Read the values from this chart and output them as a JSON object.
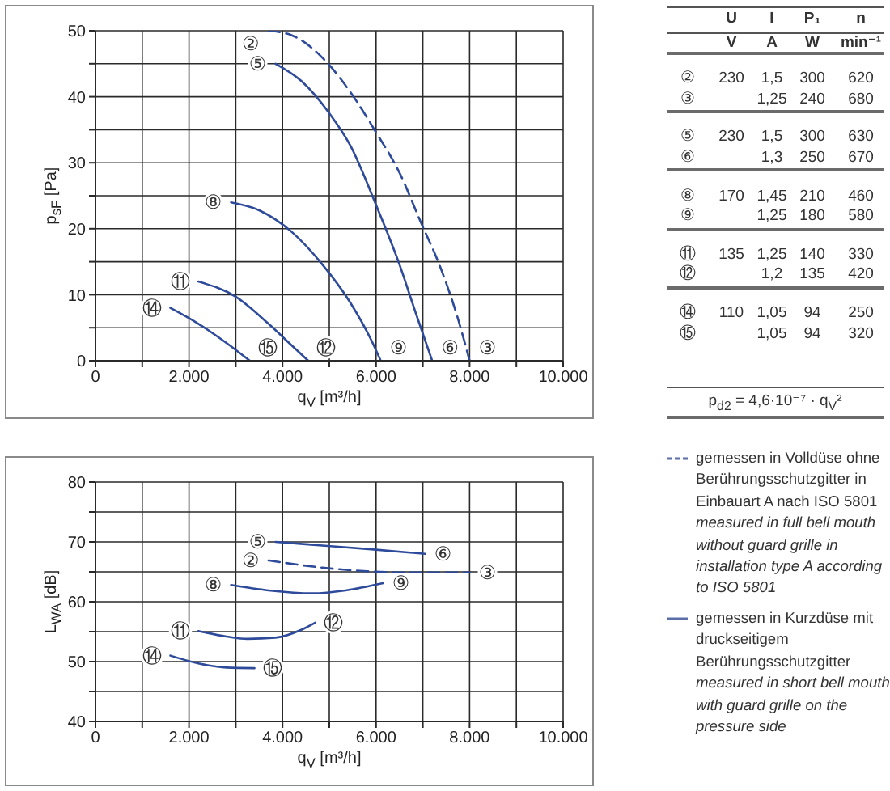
{
  "chart_data": [
    {
      "type": "line",
      "xlabel": "q$_{V}$ [m³/h]",
      "ylabel": "p$_{sF}$ [Pa]",
      "xlim": [
        0,
        10000
      ],
      "ylim": [
        0,
        50
      ],
      "xticks": [
        0,
        {
          "value": 1000,
          "label": null
        },
        {
          "value": 2000,
          "label": "2.000"
        },
        {
          "value": 3000,
          "label": null
        },
        {
          "value": 4000,
          "label": "4.000"
        },
        {
          "value": 5000,
          "label": null
        },
        {
          "value": 6000,
          "label": "6.000"
        },
        {
          "value": 7000,
          "label": null
        },
        {
          "value": 8000,
          "label": "8.000"
        },
        {
          "value": 9000,
          "label": null
        },
        {
          "value": 10000,
          "label": "10.000"
        }
      ],
      "yticks": [
        0,
        {
          "value": 5,
          "label": null
        },
        10,
        {
          "value": 15,
          "label": null
        },
        20,
        {
          "value": 25,
          "label": null
        },
        30,
        {
          "value": 35,
          "label": null
        },
        40,
        {
          "value": 45,
          "label": null
        },
        50
      ],
      "grid": true,
      "line_style": "solid",
      "series": [
        {
          "color": "#2e4a9a",
          "line_style": "dashed",
          "x": [
            3700,
            4200,
            5000,
            5450,
            6000,
            6500,
            6950,
            7400,
            7750,
            8000
          ],
          "values": [
            50,
            49.3,
            44.8,
            40.7,
            34.6,
            28.5,
            21.1,
            13.7,
            6.4,
            0
          ]
        },
        {
          "color": "#2e4a9a",
          "x": [
            3850,
            4400,
            5000,
            5450,
            6000,
            6500,
            6850,
            7200
          ],
          "values": [
            45,
            42.4,
            37.5,
            32.6,
            23.6,
            14.6,
            7.2,
            0
          ]
        },
        {
          "color": "#2e4a9a",
          "x": [
            2900,
            3500,
            4200,
            4850,
            5450,
            5900,
            6100
          ],
          "values": [
            24,
            22.8,
            19.5,
            14.6,
            8.8,
            3.1,
            0
          ]
        },
        {
          "color": "#2e4a9a",
          "x": [
            2200,
            3000,
            3700,
            4200,
            4550
          ],
          "values": [
            12,
            9.7,
            5.6,
            2.3,
            0
          ]
        },
        {
          "color": "#2e4a9a",
          "x": [
            1600,
            2200,
            2800,
            3300
          ],
          "values": [
            8,
            5.6,
            2.7,
            0
          ]
        }
      ],
      "annotations": [
        {
          "text": "②",
          "x": 3700,
          "y": 50
        },
        {
          "text": "③",
          "x": 8000,
          "y": 0
        },
        {
          "text": "⑤",
          "x": 3850,
          "y": 45
        },
        {
          "text": "⑥",
          "x": 7200,
          "y": 0
        },
        {
          "text": "⑧",
          "x": 2900,
          "y": 24
        },
        {
          "text": "⑨",
          "x": 6100,
          "y": 0
        },
        {
          "text": "⑪",
          "x": 2200,
          "y": 12
        },
        {
          "text": "⑫",
          "x": 4550,
          "y": 0
        },
        {
          "text": "⑭",
          "x": 1600,
          "y": 8
        },
        {
          "text": "⑮",
          "x": 3300,
          "y": 0
        }
      ]
    },
    {
      "type": "line",
      "xlabel": "q$_{V}$ [m³/h]",
      "ylabel": "L$_{WA}$ [dB]",
      "xlim": [
        0,
        10000
      ],
      "ylim": [
        40,
        80
      ],
      "xticks": [
        0,
        {
          "value": 1000,
          "label": null
        },
        {
          "value": 2000,
          "label": "2.000"
        },
        {
          "value": 3000,
          "label": null
        },
        {
          "value": 4000,
          "label": "4.000"
        },
        {
          "value": 5000,
          "label": null
        },
        {
          "value": 6000,
          "label": "6.000"
        },
        {
          "value": 7000,
          "label": null
        },
        {
          "value": 8000,
          "label": "8.000"
        },
        {
          "value": 9000,
          "label": null
        },
        {
          "value": 10000,
          "label": "10.000"
        }
      ],
      "yticks": [
        40,
        {
          "value": 45,
          "label": null
        },
        50,
        {
          "value": 55,
          "label": null
        },
        60,
        {
          "value": 65,
          "label": null
        },
        70,
        {
          "value": 75,
          "label": null
        },
        80
      ],
      "grid": true,
      "line_style": "solid",
      "series": [
        {
          "color": "#2e4a9a",
          "line_style": "dashed",
          "x": [
            3700,
            4850,
            5800,
            6600,
            8000
          ],
          "values": [
            66.9,
            65.7,
            65.1,
            64.9,
            64.9
          ]
        },
        {
          "color": "#2e4a9a",
          "x": [
            3850,
            4850,
            6000,
            7050
          ],
          "values": [
            70,
            69.4,
            68.7,
            68
          ]
        },
        {
          "color": "#2e4a9a",
          "x": [
            2900,
            3700,
            4650,
            5350,
            6150
          ],
          "values": [
            62.8,
            61.9,
            61.4,
            61.9,
            63.1
          ]
        },
        {
          "color": "#2e4a9a",
          "x": [
            2200,
            2800,
            3250,
            3850,
            4400,
            4700
          ],
          "values": [
            55.1,
            54.2,
            53.8,
            54,
            55.3,
            56.5
          ]
        },
        {
          "color": "#2e4a9a",
          "x": [
            1600,
            2200,
            2800,
            3400
          ],
          "values": [
            51,
            49.7,
            49,
            48.9
          ]
        }
      ],
      "annotations": [
        {
          "text": "⑤",
          "x": 3850,
          "y": 70
        },
        {
          "text": "⑥",
          "x": 7050,
          "y": 68
        },
        {
          "text": "②",
          "x": 3700,
          "y": 66.9
        },
        {
          "text": "③",
          "x": 8000,
          "y": 64.9
        },
        {
          "text": "⑧",
          "x": 2900,
          "y": 62.8
        },
        {
          "text": "⑨",
          "x": 6150,
          "y": 63.1
        },
        {
          "text": "⑪",
          "x": 2200,
          "y": 55.1
        },
        {
          "text": "⑫",
          "x": 4700,
          "y": 56.5
        },
        {
          "text": "⑭",
          "x": 1600,
          "y": 51
        },
        {
          "text": "⑮",
          "x": 3400,
          "y": 48.9
        }
      ]
    },
    {
      "type": "other",
      "categories": [
        "U",
        "I",
        "P₁",
        "n"
      ],
      "y_categories": [
        null,
        "②",
        "③",
        "⑤",
        "⑥",
        "⑧",
        "⑨",
        "⑪",
        "⑫",
        "⑭",
        "⑮"
      ],
      "cell_labels": [
        [
          "V",
          "A",
          "W",
          "min⁻¹"
        ],
        [
          "230",
          "1,5",
          "300",
          "620"
        ],
        [
          null,
          "1,25",
          "240",
          "680"
        ],
        [
          "230",
          "1,5",
          "300",
          "630"
        ],
        [
          null,
          "1,3",
          "250",
          "670"
        ],
        [
          "170",
          "1,45",
          "210",
          "460"
        ],
        [
          null,
          "1,25",
          "180",
          "580"
        ],
        [
          "135",
          "1,25",
          "140",
          "330"
        ],
        [
          null,
          "1,2",
          "135",
          "420"
        ],
        [
          "110",
          "1,05",
          "94",
          "250"
        ],
        [
          null,
          "1,05",
          "94",
          "320"
        ]
      ],
      "annotations": [
        "p$_{d2}$ = 4,6·10⁻⁷ · q$_{V}$²",
        "gemessen in Volldüse ohne Berührungsschutzgitter in Einbauart A nach ISO 5801",
        "measured in full bell mouth without guard grille in installation type A according to ISO 5801",
        "gemessen in Kurzdüse mit druckseitigem Berührungsschutzgitter",
        "measured in short bell mouth with guard grille on the pressure side"
      ]
    }
  ]
}
